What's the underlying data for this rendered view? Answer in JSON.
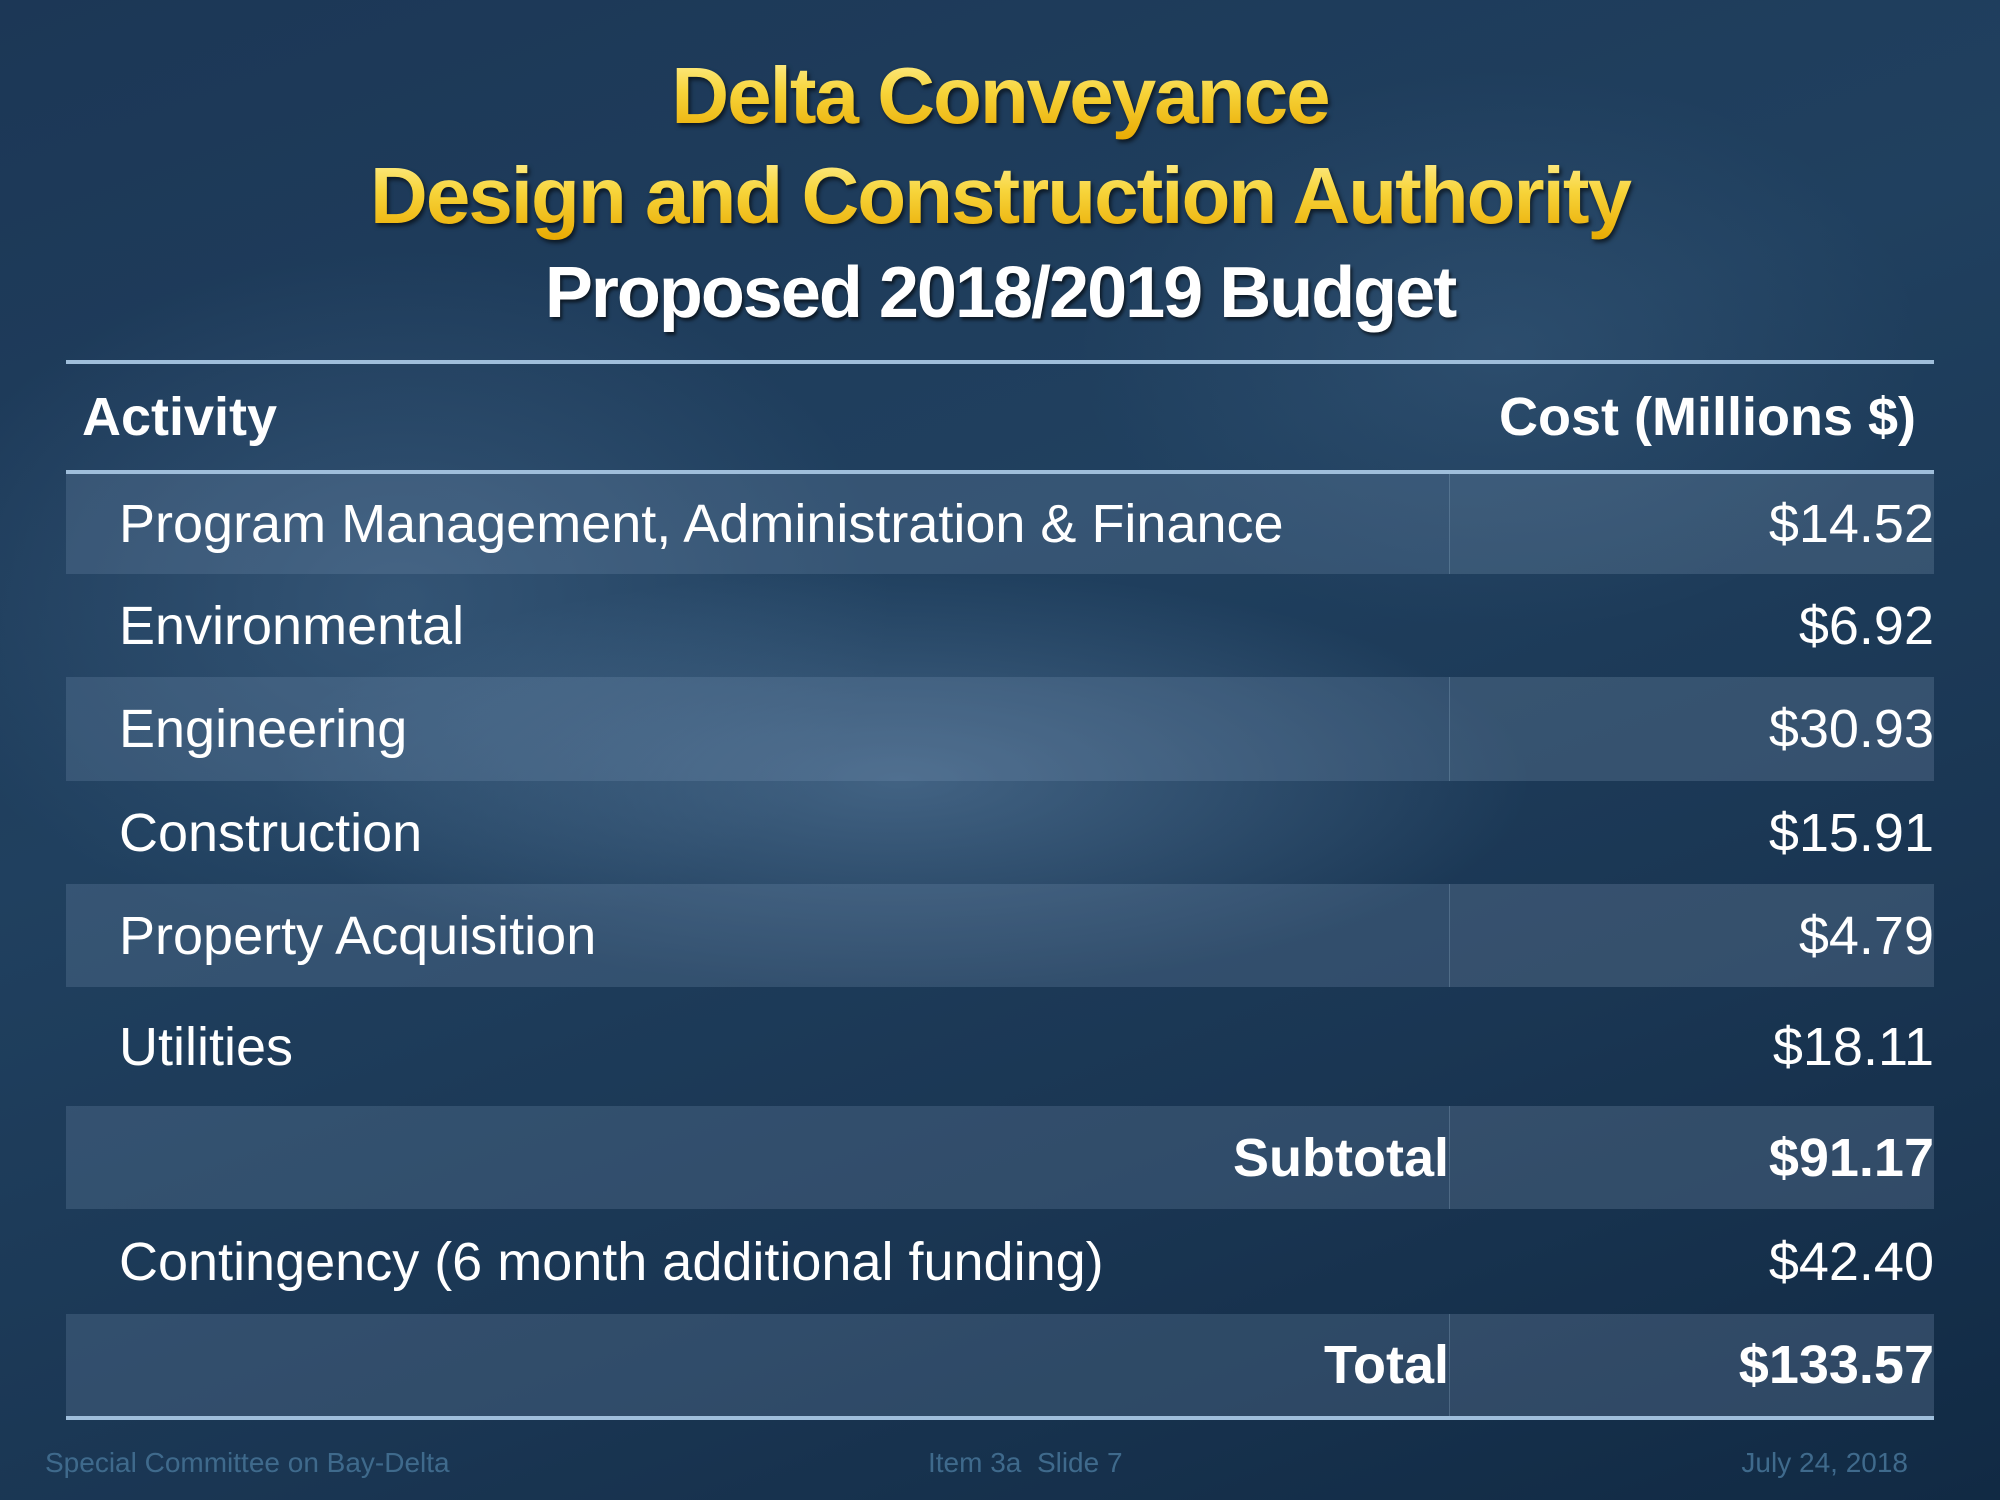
{
  "title": {
    "line1": "Delta Conveyance",
    "line2": "Design and Construction Authority",
    "line3": "Proposed 2018/2019 Budget"
  },
  "table": {
    "headers": {
      "activity": "Activity",
      "cost": "Cost (Millions $)"
    },
    "rows": [
      {
        "activity": "Program Management, Administration & Finance",
        "cost": "$14.52"
      },
      {
        "activity": "Environmental",
        "cost": "$6.92"
      },
      {
        "activity": "Engineering",
        "cost": "$30.93"
      },
      {
        "activity": "Construction",
        "cost": "$15.91"
      },
      {
        "activity": "Property Acquisition",
        "cost": "$4.79"
      },
      {
        "activity": "Utilities",
        "cost": "$18.11"
      }
    ],
    "subtotal": {
      "label": "Subtotal",
      "cost": "$91.17"
    },
    "contingency": {
      "activity": "Contingency (6 month additional funding)",
      "cost": "$42.40"
    },
    "total": {
      "label": "Total",
      "cost": "$133.57"
    }
  },
  "footer": {
    "left": "Special Committee on Bay-Delta",
    "center": "Item 3a  Slide 7",
    "right": "July 24, 2018"
  },
  "colors": {
    "title_gold": "#f5c518",
    "rule": "#9fbedb",
    "background": "#1c3756"
  }
}
